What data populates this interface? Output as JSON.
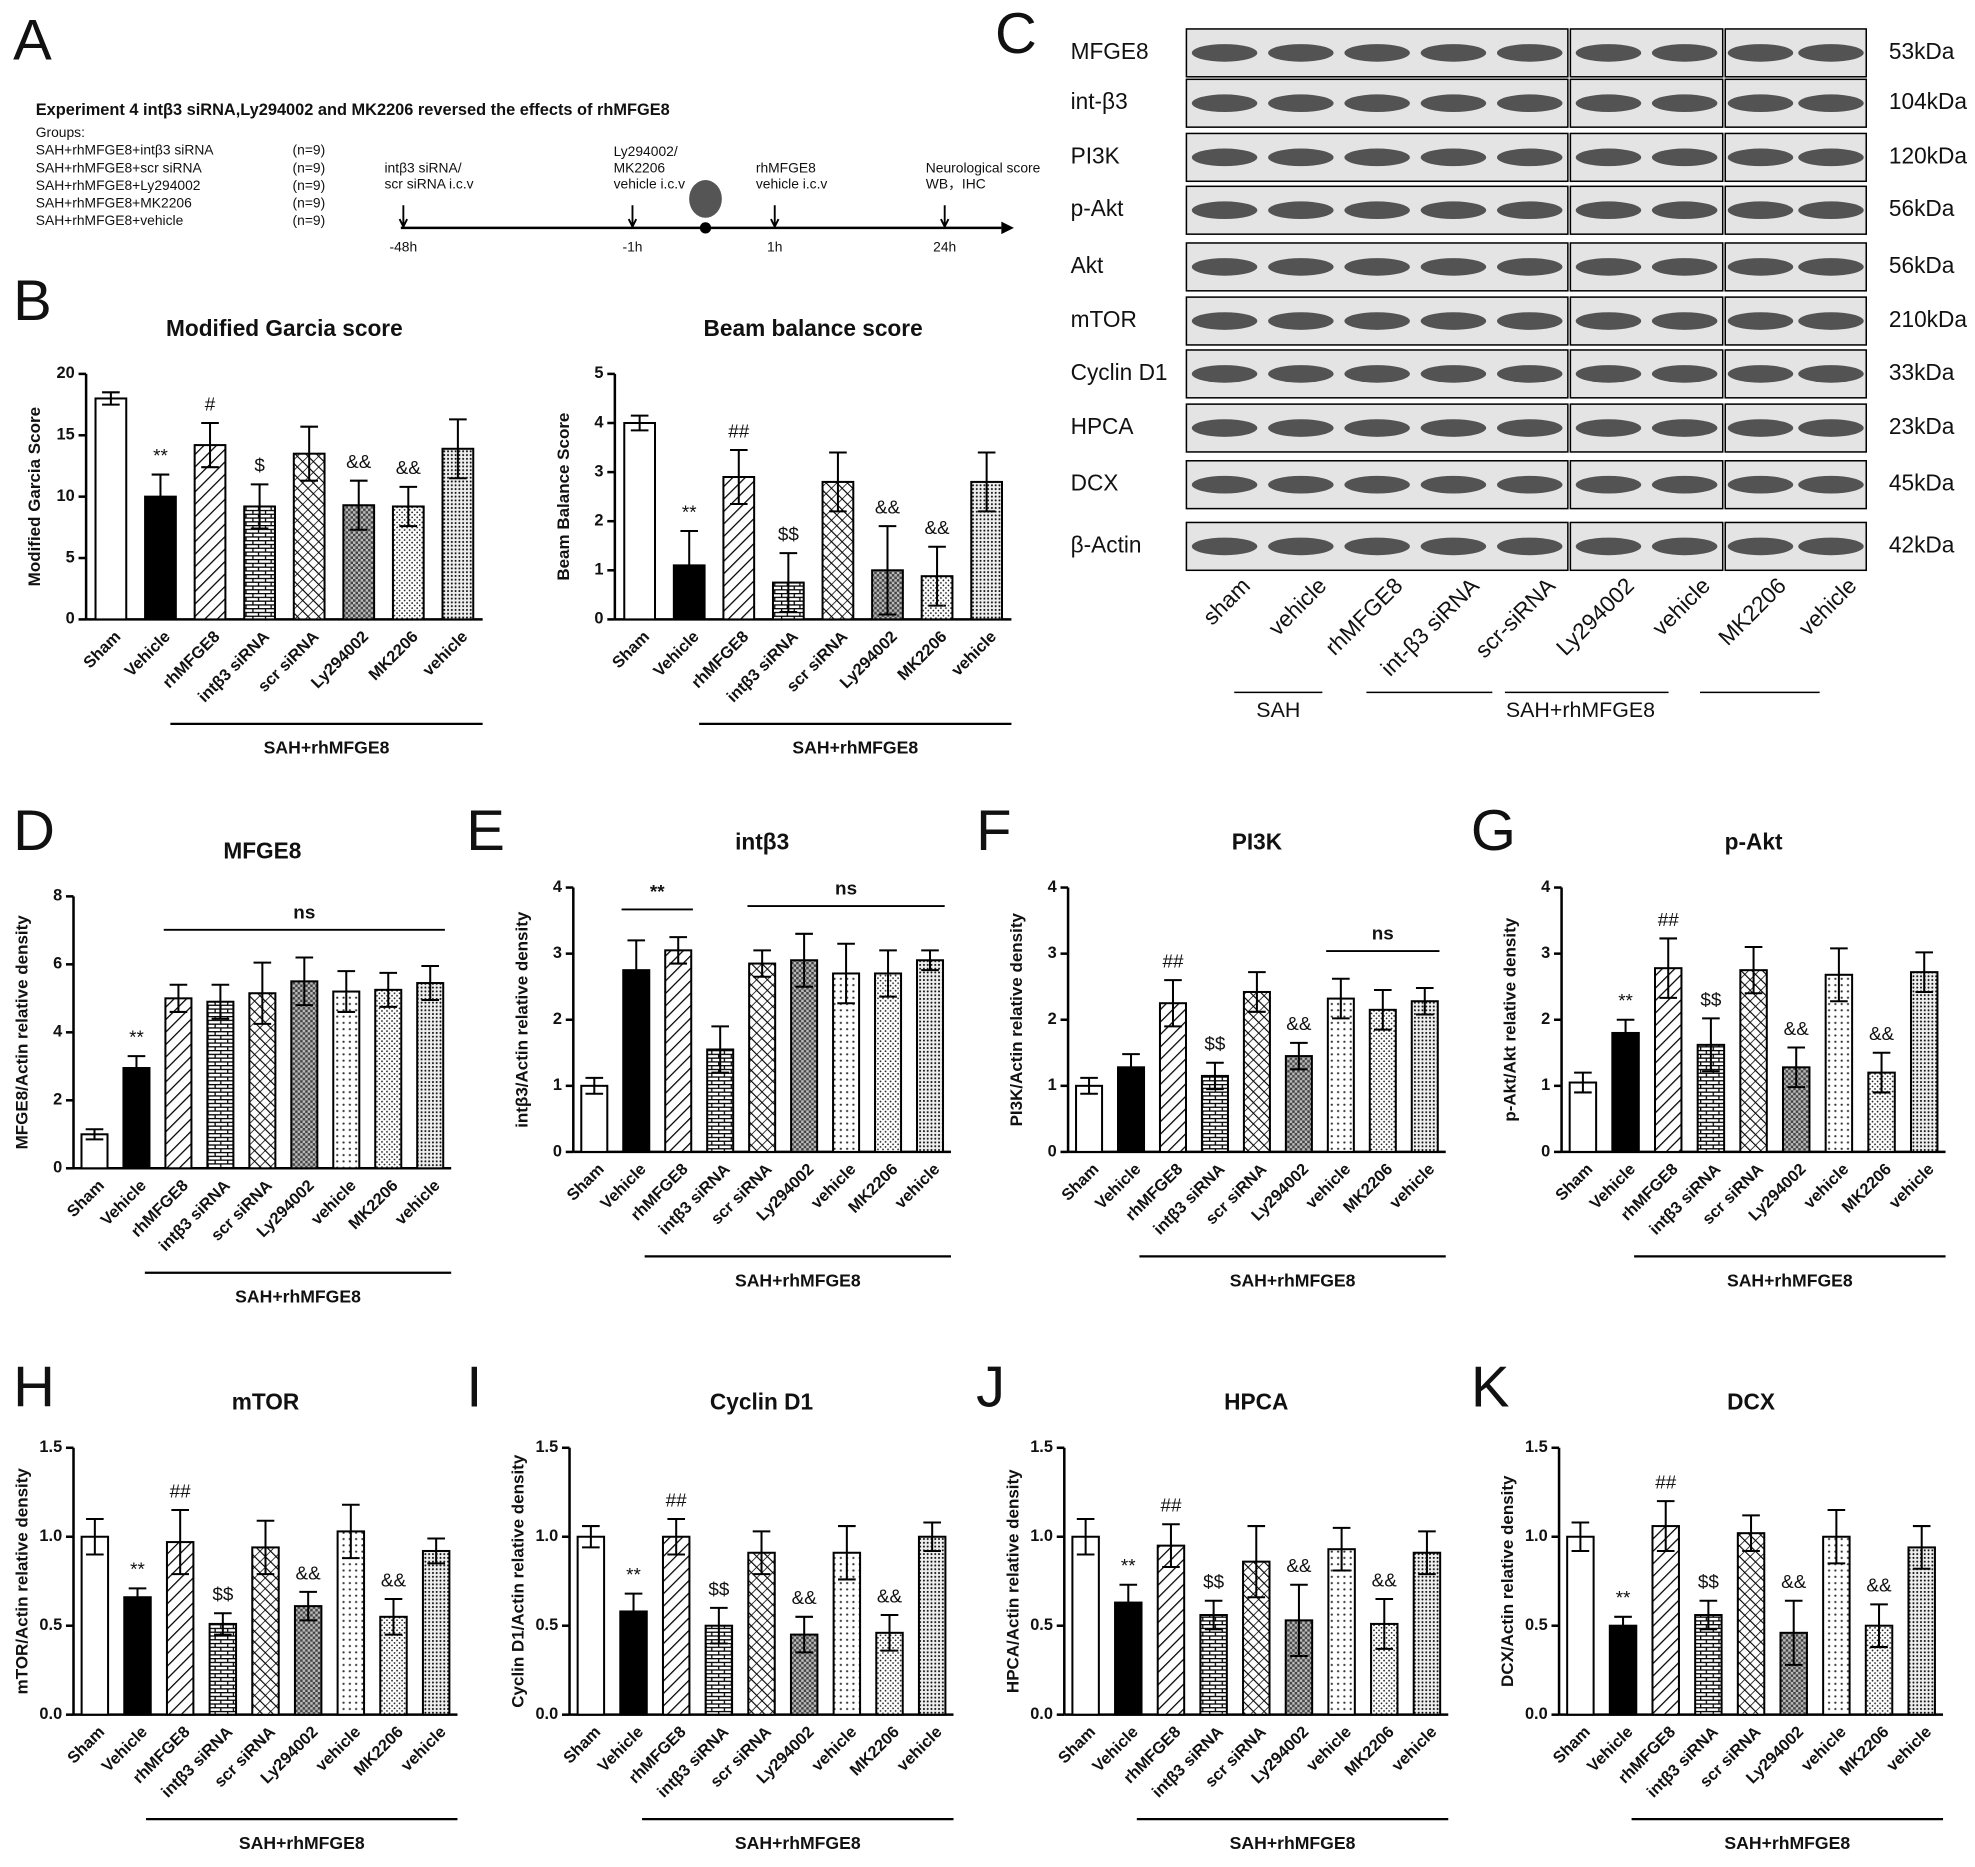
{
  "panel_labels": [
    "A",
    "B",
    "C",
    "D",
    "E",
    "F",
    "G",
    "H",
    "I",
    "J",
    "K"
  ],
  "experiment": {
    "title": "Experiment 4 intβ3 siRNA,Ly294002 and MK2206 reversed the effects of rhMFGE8",
    "groups_heading": "Groups:",
    "groups": [
      {
        "name": "SAH+rhMFGE8+intβ3 siRNA",
        "n": "(n=9)"
      },
      {
        "name": "SAH+rhMFGE8+scr siRNA",
        "n": "(n=9)"
      },
      {
        "name": "SAH+rhMFGE8+Ly294002",
        "n": "(n=9)"
      },
      {
        "name": "SAH+rhMFGE8+MK2206",
        "n": "(n=9)"
      },
      {
        "name": "SAH+rhMFGE8+vehicle",
        "n": "(n=9)"
      }
    ],
    "timeline": [
      {
        "label": [
          "intβ3 siRNA/",
          "scr siRNA i.c.v"
        ],
        "time": "-48h"
      },
      {
        "label": [
          "Ly294002/",
          "MK2206",
          "vehicle i.c.v"
        ],
        "time": "-1h"
      },
      {
        "label": [
          "rhMFGE8",
          "vehicle i.c.v"
        ],
        "time": "1h"
      },
      {
        "label": [
          "Neurological score",
          "WB，IHC"
        ],
        "time": "24h"
      }
    ]
  },
  "blot": {
    "proteins": [
      "MFGE8",
      "int-β3",
      "PI3K",
      "p-Akt",
      "Akt",
      "mTOR",
      "Cyclin D1",
      "HPCA",
      "DCX",
      "β-Actin"
    ],
    "sizes": [
      "53kDa",
      "104kDa",
      "120kDa",
      "56kDa",
      "56kDa",
      "210kDa",
      "33kDa",
      "23kDa",
      "45kDa",
      "42kDa"
    ],
    "lanes": [
      "sham",
      "vehicle",
      "rhMFGE8",
      "int-β3 siRNA",
      "scr-siRNA",
      "Ly294002",
      "vehicle",
      "MK2206",
      "vehicle"
    ],
    "groups": [
      "SAH",
      "SAH+rhMFGE8"
    ]
  },
  "chart_data": [
    {
      "type": "bar",
      "title": "Modified Garcia score",
      "y_label": "Modified Garcia Score",
      "group_label": "SAH+rhMFGE8",
      "categories": [
        "Sham",
        "Vehicle",
        "rhMFGE8",
        "intβ3 siRNA",
        "scr siRNA",
        "Ly294002",
        "MK2206",
        "vehicle"
      ],
      "values": [
        18,
        10,
        14.2,
        9.2,
        13.5,
        9.3,
        9.2,
        13.9
      ],
      "errors": [
        0.5,
        1.8,
        1.8,
        1.8,
        2.2,
        2,
        1.6,
        2.4
      ],
      "annotations": [
        null,
        "**",
        "#",
        "$",
        null,
        "&&",
        "&&",
        null
      ],
      "brackets": [],
      "ylim": [
        0,
        20
      ],
      "yticks": [
        0,
        5,
        10,
        15,
        20
      ]
    },
    {
      "type": "bar",
      "title": "Beam balance score",
      "y_label": "Beam Balance Score",
      "group_label": "SAH+rhMFGE8",
      "categories": [
        "Sham",
        "Vehicle",
        "rhMFGE8",
        "intβ3 siRNA",
        "scr siRNA",
        "Ly294002",
        "MK2206",
        "vehicle"
      ],
      "values": [
        4,
        1.1,
        2.9,
        0.75,
        2.8,
        1.0,
        0.88,
        2.8
      ],
      "errors": [
        0.15,
        0.7,
        0.55,
        0.6,
        0.6,
        0.9,
        0.6,
        0.6
      ],
      "annotations": [
        null,
        "**",
        "##",
        "$$",
        null,
        "&&",
        "&&",
        null
      ],
      "brackets": [],
      "ylim": [
        0,
        5
      ],
      "yticks": [
        0,
        1,
        2,
        3,
        4,
        5
      ]
    },
    {
      "type": "bar",
      "title": "MFGE8",
      "y_label": "MFGE8/Actin relative density",
      "group_label": "SAH+rhMFGE8",
      "categories": [
        "Sham",
        "Vehicle",
        "rhMFGE8",
        "intβ3 siRNA",
        "scr siRNA",
        "Ly294002",
        "vehicle",
        "MK2206",
        "vehicle"
      ],
      "values": [
        1,
        2.95,
        5,
        4.9,
        5.15,
        5.5,
        5.2,
        5.25,
        5.45
      ],
      "errors": [
        0.15,
        0.35,
        0.4,
        0.5,
        0.9,
        0.7,
        0.6,
        0.5,
        0.5
      ],
      "annotations": [
        null,
        "**",
        null,
        null,
        null,
        null,
        null,
        null,
        null
      ],
      "brackets": [
        {
          "text": "ns",
          "span": [
            2,
            8
          ]
        }
      ],
      "ylim": [
        0,
        8
      ],
      "yticks": [
        0,
        2,
        4,
        6,
        8
      ]
    },
    {
      "type": "bar",
      "title": "intβ3",
      "y_label": "intβ3/Actin relative density",
      "group_label": "SAH+rhMFGE8",
      "categories": [
        "Sham",
        "Vehicle",
        "rhMFGE8",
        "intβ3 siRNA",
        "scr siRNA",
        "Ly294002",
        "vehicle",
        "MK2206",
        "vehicle"
      ],
      "values": [
        1,
        2.75,
        3.05,
        1.55,
        2.85,
        2.9,
        2.7,
        2.7,
        2.9
      ],
      "errors": [
        0.12,
        0.45,
        0.2,
        0.35,
        0.2,
        0.4,
        0.45,
        0.35,
        0.15
      ],
      "annotations": [
        null,
        null,
        null,
        null,
        null,
        null,
        null,
        null,
        null
      ],
      "brackets": [
        {
          "text": "**",
          "span": [
            1,
            2
          ]
        },
        {
          "text": "ns",
          "span": [
            4,
            8
          ]
        }
      ],
      "ylim": [
        0,
        4
      ],
      "yticks": [
        0,
        1,
        2,
        3,
        4
      ]
    },
    {
      "type": "bar",
      "title": "PI3K",
      "y_label": "PI3K/Actin relative density",
      "group_label": "SAH+rhMFGE8",
      "categories": [
        "Sham",
        "Vehicle",
        "rhMFGE8",
        "intβ3 siRNA",
        "scr siRNA",
        "Ly294002",
        "vehicle",
        "MK2206",
        "vehicle"
      ],
      "values": [
        1.0,
        1.28,
        2.25,
        1.15,
        2.42,
        1.45,
        2.32,
        2.15,
        2.28
      ],
      "errors": [
        0.12,
        0.2,
        0.35,
        0.2,
        0.3,
        0.2,
        0.3,
        0.3,
        0.2
      ],
      "annotations": [
        null,
        null,
        "##",
        "$$",
        null,
        "&&",
        null,
        null,
        null
      ],
      "brackets": [
        {
          "text": "ns",
          "span": [
            6,
            8
          ]
        }
      ],
      "ylim": [
        0,
        4
      ],
      "yticks": [
        0,
        1,
        2,
        3,
        4
      ]
    },
    {
      "type": "bar",
      "title": "p-Akt",
      "y_label": "p-Akt/Akt relative density",
      "group_label": "SAH+rhMFGE8",
      "categories": [
        "Sham",
        "Vehicle",
        "rhMFGE8",
        "intβ3 siRNA",
        "scr siRNA",
        "Ly294002",
        "vehicle",
        "MK2206",
        "vehicle"
      ],
      "values": [
        1.05,
        1.8,
        2.78,
        1.62,
        2.75,
        1.28,
        2.68,
        1.2,
        2.72
      ],
      "errors": [
        0.15,
        0.2,
        0.45,
        0.4,
        0.35,
        0.3,
        0.4,
        0.3,
        0.3
      ],
      "annotations": [
        null,
        "**",
        "##",
        "$$",
        null,
        "&&",
        null,
        "&&",
        null
      ],
      "brackets": [],
      "ylim": [
        0,
        4
      ],
      "yticks": [
        0,
        1,
        2,
        3,
        4
      ]
    },
    {
      "type": "bar",
      "title": "mTOR",
      "y_label": "mTOR/Actin relative density",
      "group_label": "SAH+rhMFGE8",
      "categories": [
        "Sham",
        "Vehicle",
        "rhMFGE8",
        "intβ3 siRNA",
        "scr siRNA",
        "Ly294002",
        "vehicle",
        "MK2206",
        "vehicle"
      ],
      "values": [
        1.0,
        0.66,
        0.97,
        0.51,
        0.94,
        0.61,
        1.03,
        0.55,
        0.92
      ],
      "errors": [
        0.1,
        0.05,
        0.18,
        0.06,
        0.15,
        0.08,
        0.15,
        0.1,
        0.07
      ],
      "annotations": [
        null,
        "**",
        "##",
        "$$",
        null,
        "&&",
        null,
        "&&",
        null
      ],
      "brackets": [],
      "ylim": [
        0,
        1.5
      ],
      "yticks": [
        {
          "value": 0,
          "label": "0.0"
        },
        0.5,
        {
          "value": 1,
          "label": "1.0"
        },
        1.5
      ]
    },
    {
      "type": "bar",
      "title": "Cyclin D1",
      "y_label": "Cyclin D1/Actin relative density",
      "group_label": "SAH+rhMFGE8",
      "categories": [
        "Sham",
        "Vehicle",
        "rhMFGE8",
        "intβ3 siRNA",
        "scr siRNA",
        "Ly294002",
        "vehicle",
        "MK2206",
        "vehicle"
      ],
      "values": [
        1.0,
        0.58,
        1.0,
        0.5,
        0.91,
        0.45,
        0.91,
        0.46,
        1.0
      ],
      "errors": [
        0.06,
        0.1,
        0.1,
        0.1,
        0.12,
        0.1,
        0.15,
        0.1,
        0.08
      ],
      "annotations": [
        null,
        "**",
        "##",
        "$$",
        null,
        "&&",
        null,
        "&&",
        null
      ],
      "brackets": [],
      "ylim": [
        0,
        1.5
      ],
      "yticks": [
        {
          "value": 0,
          "label": "0.0"
        },
        0.5,
        {
          "value": 1,
          "label": "1.0"
        },
        1.5
      ]
    },
    {
      "type": "bar",
      "title": "HPCA",
      "y_label": "HPCA/Actin relative density",
      "group_label": "SAH+rhMFGE8",
      "categories": [
        "Sham",
        "Vehicle",
        "rhMFGE8",
        "intβ3 siRNA",
        "scr siRNA",
        "Ly294002",
        "vehicle",
        "MK2206",
        "vehicle"
      ],
      "values": [
        1.0,
        0.63,
        0.95,
        0.56,
        0.86,
        0.53,
        0.93,
        0.51,
        0.91
      ],
      "errors": [
        0.1,
        0.1,
        0.12,
        0.08,
        0.2,
        0.2,
        0.12,
        0.14,
        0.12
      ],
      "annotations": [
        null,
        "**",
        "##",
        "$$",
        null,
        "&&",
        null,
        "&&",
        null
      ],
      "brackets": [],
      "ylim": [
        0,
        1.5
      ],
      "yticks": [
        {
          "value": 0,
          "label": "0.0"
        },
        0.5,
        {
          "value": 1,
          "label": "1.0"
        },
        1.5
      ]
    },
    {
      "type": "bar",
      "title": "DCX",
      "y_label": "DCX/Actin relative density",
      "group_label": "SAH+rhMFGE8",
      "categories": [
        "Sham",
        "Vehicle",
        "rhMFGE8",
        "intβ3 siRNA",
        "scr siRNA",
        "Ly294002",
        "vehicle",
        "MK2206",
        "vehicle"
      ],
      "values": [
        1.0,
        0.5,
        1.06,
        0.56,
        1.02,
        0.46,
        1.0,
        0.5,
        0.94
      ],
      "errors": [
        0.08,
        0.05,
        0.14,
        0.08,
        0.1,
        0.18,
        0.15,
        0.12,
        0.12
      ],
      "annotations": [
        null,
        "**",
        "##",
        "$$",
        null,
        "&&",
        null,
        "&&",
        null
      ],
      "brackets": [],
      "ylim": [
        0,
        1.5
      ],
      "yticks": [
        {
          "value": 0,
          "label": "0.0"
        },
        0.5,
        {
          "value": 1,
          "label": "1.0"
        },
        1.5
      ]
    }
  ]
}
